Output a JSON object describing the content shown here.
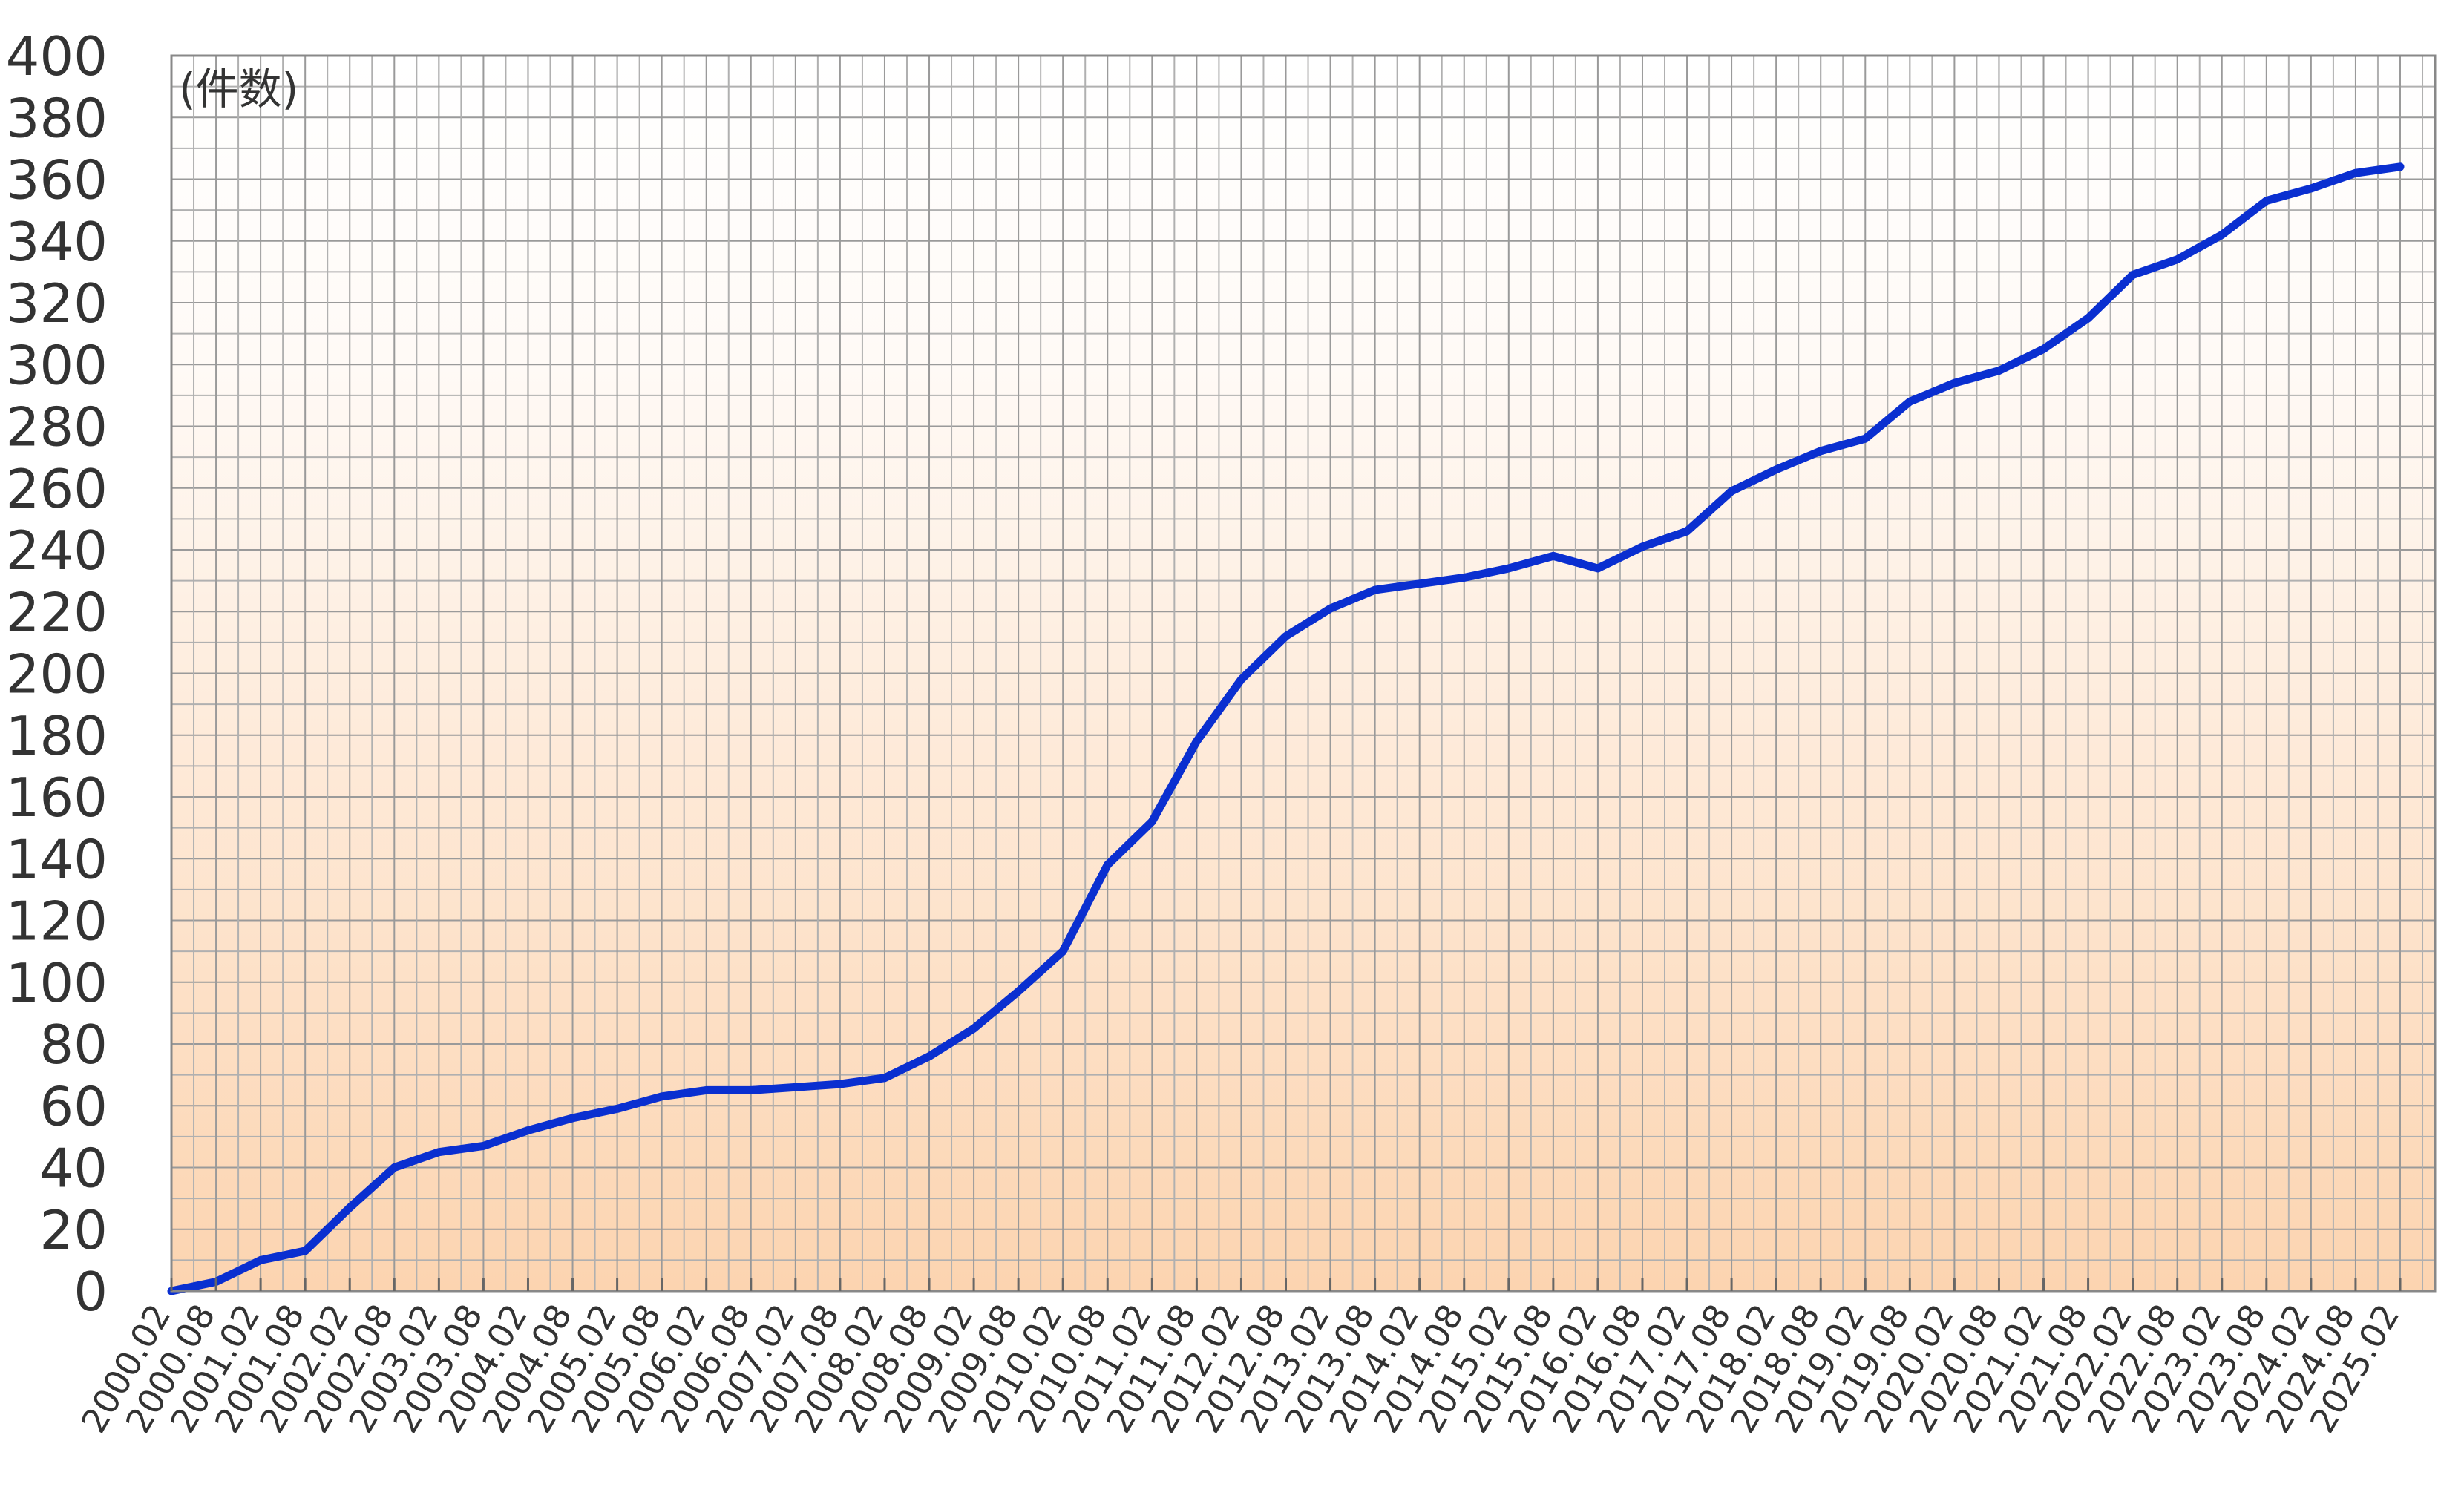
{
  "chart_data": {
    "type": "line",
    "annotation": "(件数)",
    "categories": [
      "2000.02",
      "2000.08",
      "2001.02",
      "2001.08",
      "2002.02",
      "2002.08",
      "2003.02",
      "2003.08",
      "2004.02",
      "2004.08",
      "2005.02",
      "2005.08",
      "2006.02",
      "2006.08",
      "2007.02",
      "2007.08",
      "2008.02",
      "2008.08",
      "2009.02",
      "2009.08",
      "2010.02",
      "2010.08",
      "2011.02",
      "2011.08",
      "2012.02",
      "2012.08",
      "2013.02",
      "2013.08",
      "2014.02",
      "2014.08",
      "2015.02",
      "2015.08",
      "2016.02",
      "2016.08",
      "2017.02",
      "2017.08",
      "2018.02",
      "2018.08",
      "2019.02",
      "2019.08",
      "2020.02",
      "2020.08",
      "2021.02",
      "2021.08",
      "2022.02",
      "2022.08",
      "2023.02",
      "2023.08",
      "2024.02",
      "2024.08",
      "2025.02"
    ],
    "values": [
      0,
      3,
      10,
      13,
      27,
      40,
      45,
      47,
      52,
      56,
      59,
      63,
      65,
      65,
      66,
      67,
      69,
      76,
      85,
      97,
      110,
      138,
      152,
      178,
      198,
      212,
      221,
      227,
      229,
      231,
      234,
      238,
      234,
      241,
      246,
      259,
      266,
      272,
      276,
      288,
      294,
      298,
      305,
      315,
      329,
      334,
      342,
      353,
      357,
      362,
      364
    ],
    "color": "#0a2fd0",
    "ylim": [
      0,
      400
    ],
    "yticks": [
      0,
      20,
      40,
      60,
      80,
      100,
      120,
      140,
      160,
      180,
      200,
      220,
      240,
      260,
      280,
      300,
      320,
      340,
      360,
      380,
      400
    ],
    "grid": true
  }
}
